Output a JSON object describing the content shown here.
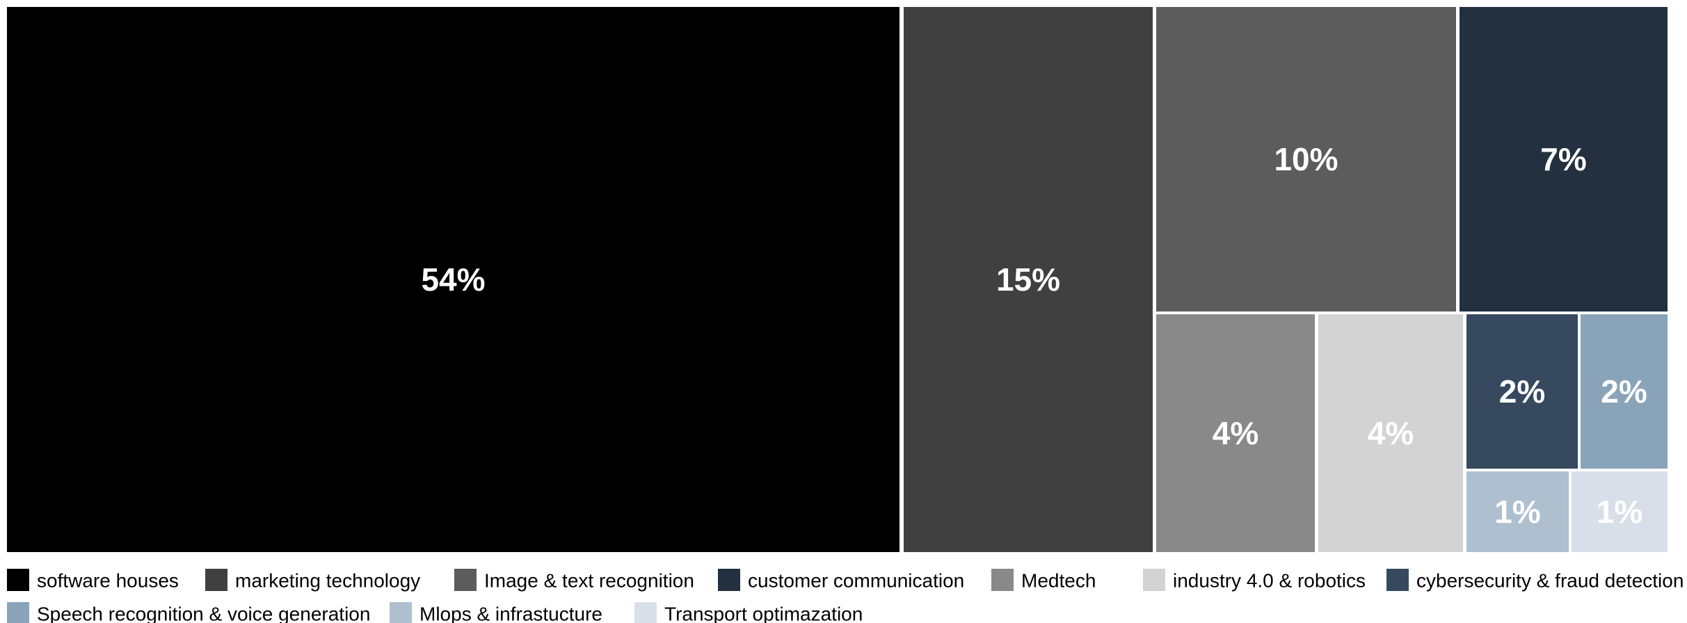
{
  "chart_data": {
    "type": "treemap",
    "title": "",
    "legend_position": "bottom",
    "items": [
      {
        "name": "software houses",
        "label": "54%",
        "value": 54,
        "color": "#000000"
      },
      {
        "name": "marketing technology",
        "label": "15%",
        "value": 15,
        "color": "#404040"
      },
      {
        "name": "Image & text recognition",
        "label": "10%",
        "value": 10,
        "color": "#5c5c5c"
      },
      {
        "name": "customer communication",
        "label": "7%",
        "value": 7,
        "color": "#23303f"
      },
      {
        "name": "Medtech",
        "label": "4%",
        "value": 4,
        "color": "#898989"
      },
      {
        "name": "industry 4.0 & robotics",
        "label": "4%",
        "value": 4,
        "color": "#d3d3d3"
      },
      {
        "name": "cybersecurity & fraud detection",
        "label": "2%",
        "value": 2,
        "color": "#36495e"
      },
      {
        "name": "Speech recognition & voice generation",
        "label": "2%",
        "value": 2,
        "color": "#89a3b9"
      },
      {
        "name": "Mlops & infrastucture",
        "label": "1%",
        "value": 1,
        "color": "#aebfd0"
      },
      {
        "name": "Transport optimazation",
        "label": "1%",
        "value": 1,
        "color": "#d9dfe9"
      }
    ]
  }
}
